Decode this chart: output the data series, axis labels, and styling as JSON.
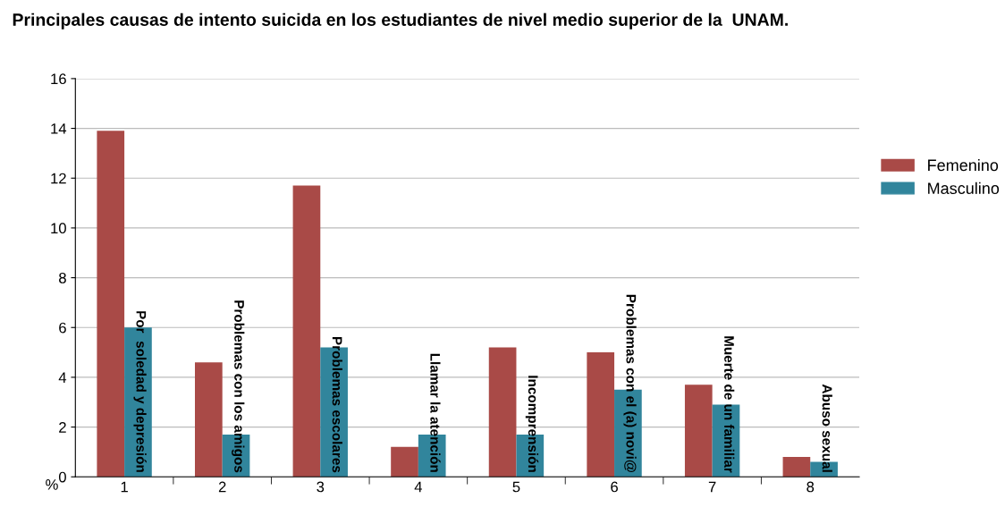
{
  "chart_data": {
    "type": "bar",
    "title": "Principales causas de intento suicida en los estudiantes de nivel medio superior de la  UNAM.",
    "ylabel": "%",
    "categories": [
      "1",
      "2",
      "3",
      "4",
      "5",
      "6",
      "7",
      "8"
    ],
    "series": [
      {
        "name": "Femenino",
        "color": "#a94a47",
        "values": [
          13.9,
          4.6,
          11.7,
          1.2,
          5.2,
          5.0,
          3.7,
          0.8
        ]
      },
      {
        "name": "Masculino",
        "color": "#31859c",
        "values": [
          6.0,
          1.7,
          5.2,
          1.7,
          1.7,
          3.5,
          2.9,
          0.6
        ]
      }
    ],
    "annotations": [
      "Por  soledad y depresión",
      "Problemas con los amigos",
      "Problemas escolares",
      "Llamar la atención",
      "Incomprensión",
      "Problemas con el (a) novi@",
      "Muerte de un familiar",
      "Abuso sexual"
    ],
    "ylim": [
      0,
      16
    ],
    "yticks": [
      0,
      2,
      4,
      6,
      8,
      10,
      12,
      14,
      16
    ],
    "grid": "y",
    "legend": "right"
  }
}
